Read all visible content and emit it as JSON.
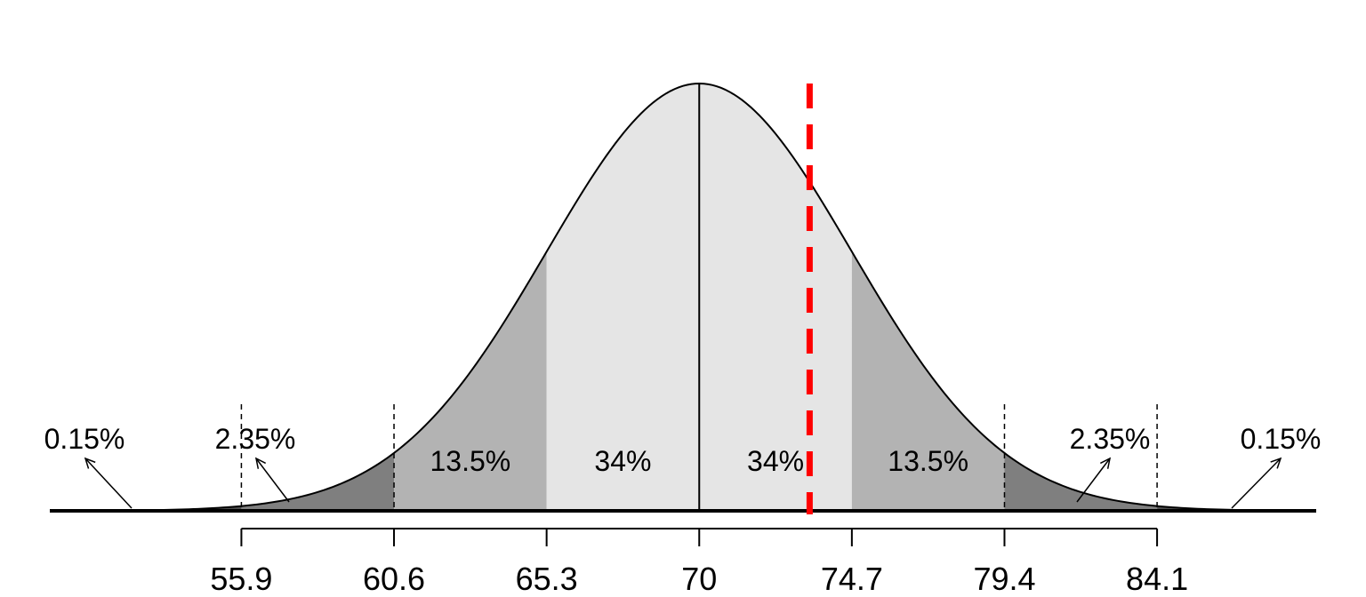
{
  "chart_data": {
    "type": "area",
    "distribution": "normal",
    "mean": 70,
    "sd": 4.7,
    "xlim": [
      50,
      89
    ],
    "x_ticks": [
      55.9,
      60.6,
      65.3,
      70,
      74.7,
      79.4,
      84.1
    ],
    "x_tick_labels": [
      "55.9",
      "60.6",
      "65.3",
      "70",
      "74.7",
      "79.4",
      "84.1"
    ],
    "region_boundaries": [
      55.9,
      60.6,
      65.3,
      70,
      74.7,
      79.4,
      84.1
    ],
    "region_labels": [
      "0.15%",
      "2.35%",
      "13.5%",
      "34%",
      "34%",
      "13.5%",
      "2.35%",
      "0.15%"
    ],
    "region_colors": {
      "center": "#e5e5e5",
      "second": "#b3b3b3",
      "third": "#7f7f7f",
      "tail": "#4d4d4d"
    },
    "reference_line": {
      "x": 73.4,
      "color": "#ff0000",
      "style": "dashed"
    },
    "center_line": {
      "x": 70,
      "color": "#000000"
    },
    "title": "",
    "xlabel": "",
    "ylabel": "",
    "grid": false,
    "legend": "none"
  }
}
